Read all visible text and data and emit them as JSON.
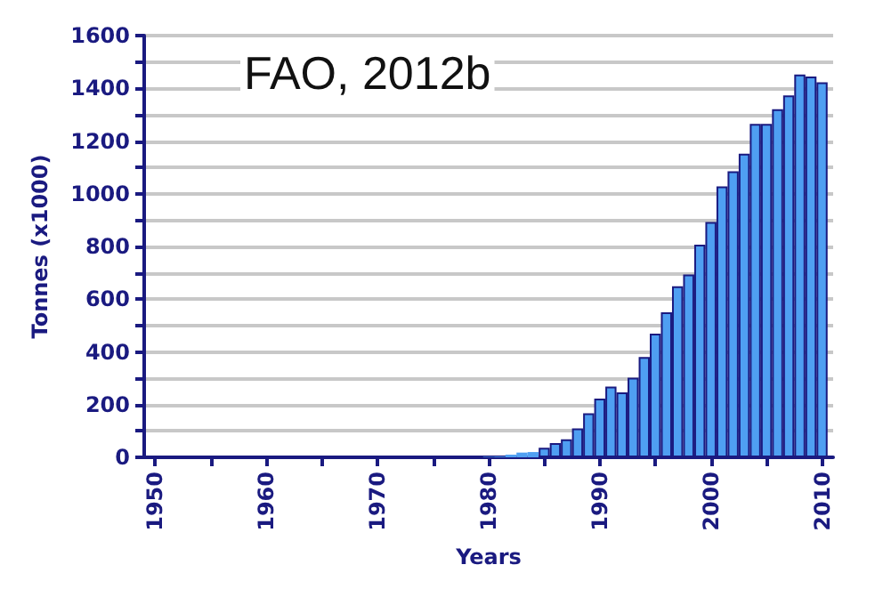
{
  "chart_data": {
    "type": "bar",
    "xlabel": "Years",
    "ylabel": "Tonnes (x1000)",
    "annotations": [
      "FAO, 2012b"
    ],
    "x": [
      1980,
      1981,
      1982,
      1983,
      1984,
      1985,
      1986,
      1987,
      1988,
      1989,
      1990,
      1991,
      1992,
      1993,
      1994,
      1995,
      1996,
      1997,
      1998,
      1999,
      2000,
      2001,
      2002,
      2003,
      2004,
      2005,
      2006,
      2007,
      2008,
      2009,
      2010
    ],
    "values": [
      2,
      3,
      10,
      18,
      20,
      36,
      54,
      68,
      110,
      167,
      223,
      268,
      246,
      302,
      381,
      469,
      550,
      649,
      694,
      807,
      893,
      1028,
      1085,
      1152,
      1265,
      1265,
      1321,
      1373,
      1452,
      1445,
      1423
    ],
    "color": "#4f9ff2",
    "xlim": [
      1949,
      2011
    ],
    "xticks": [
      1950,
      {
        "value": 1955,
        "label": null
      },
      1960,
      {
        "value": 1965,
        "label": null
      },
      1970,
      {
        "value": 1975,
        "label": null
      },
      1980,
      {
        "value": 1985,
        "label": null
      },
      1990,
      {
        "value": 1995,
        "label": null
      },
      2000,
      {
        "value": 2005,
        "label": null
      },
      2010
    ],
    "ylim": [
      0,
      1600
    ],
    "yticks": [
      0,
      {
        "value": 100,
        "label": null
      },
      200,
      {
        "value": 300,
        "label": null
      },
      400,
      {
        "value": 500,
        "label": null
      },
      600,
      {
        "value": 700,
        "label": null
      },
      800,
      {
        "value": 900,
        "label": null
      },
      1000,
      {
        "value": 1100,
        "label": null
      },
      1200,
      {
        "value": 1300,
        "label": null
      },
      1400,
      {
        "value": 1500,
        "label": null
      },
      1600
    ],
    "grid": "y"
  }
}
